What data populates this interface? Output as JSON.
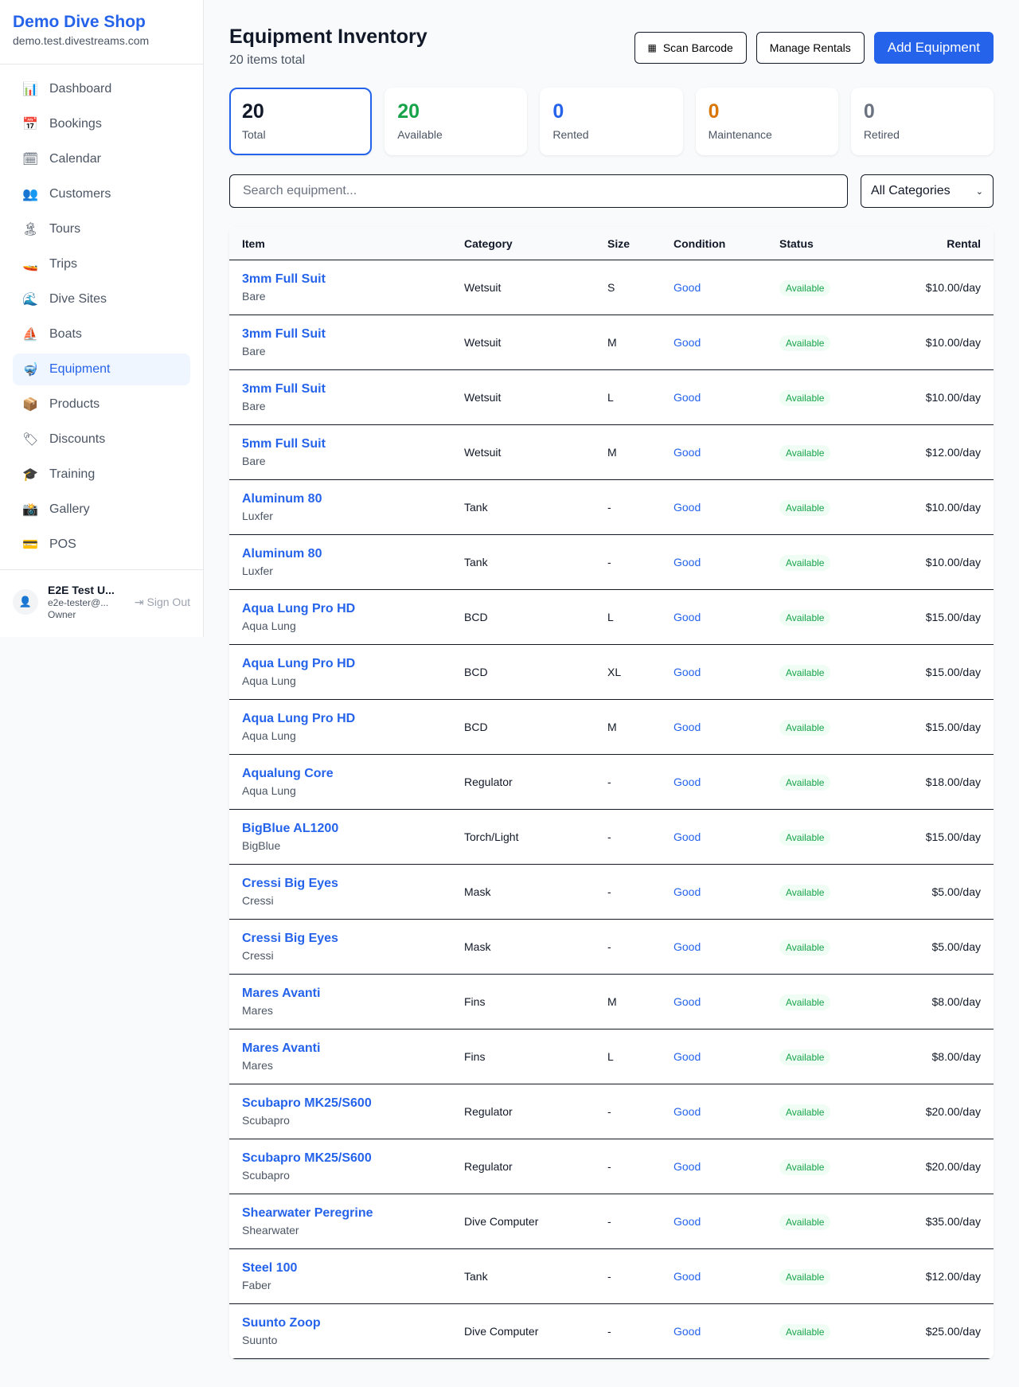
{
  "sidebar": {
    "shop_name": "Demo Dive Shop",
    "domain": "demo.test.divestreams.com",
    "items": [
      {
        "label": "Dashboard",
        "icon": "📊"
      },
      {
        "label": "Bookings",
        "icon": "📅"
      },
      {
        "label": "Calendar",
        "icon": "🗓"
      },
      {
        "label": "Customers",
        "icon": "👥"
      },
      {
        "label": "Tours",
        "icon": "🏝"
      },
      {
        "label": "Trips",
        "icon": "🚤"
      },
      {
        "label": "Dive Sites",
        "icon": "🌊"
      },
      {
        "label": "Boats",
        "icon": "⛵"
      },
      {
        "label": "Equipment",
        "icon": "🤿",
        "active": true
      },
      {
        "label": "Products",
        "icon": "📦"
      },
      {
        "label": "Discounts",
        "icon": "🏷"
      },
      {
        "label": "Training",
        "icon": "🎓"
      },
      {
        "label": "Gallery",
        "icon": "📸"
      },
      {
        "label": "POS",
        "icon": "💳"
      }
    ],
    "user": {
      "name": "E2E Test U...",
      "email": "e2e-tester@...",
      "role": "Owner",
      "sign_out": "Sign Out"
    }
  },
  "header": {
    "title": "Equipment Inventory",
    "subtitle": "20 items total",
    "scan_barcode": "Scan Barcode",
    "manage_rentals": "Manage Rentals",
    "add_equipment": "Add Equipment"
  },
  "stats": [
    {
      "value": "20",
      "label": "Total",
      "color": "#111827"
    },
    {
      "value": "20",
      "label": "Available",
      "color": "#16a34a"
    },
    {
      "value": "0",
      "label": "Rented",
      "color": "#2563eb"
    },
    {
      "value": "0",
      "label": "Maintenance",
      "color": "#d97706"
    },
    {
      "value": "0",
      "label": "Retired",
      "color": "#6b7280"
    }
  ],
  "filters": {
    "search_placeholder": "Search equipment...",
    "category": "All Categories"
  },
  "table": {
    "headers": [
      "Item",
      "Category",
      "Size",
      "Condition",
      "Status",
      "Rental"
    ],
    "rows": [
      [
        "3mm Full Suit",
        "Bare",
        "Wetsuit",
        "S",
        "Good",
        "Available",
        "$10.00/day"
      ],
      [
        "3mm Full Suit",
        "Bare",
        "Wetsuit",
        "M",
        "Good",
        "Available",
        "$10.00/day"
      ],
      [
        "3mm Full Suit",
        "Bare",
        "Wetsuit",
        "L",
        "Good",
        "Available",
        "$10.00/day"
      ],
      [
        "5mm Full Suit",
        "Bare",
        "Wetsuit",
        "M",
        "Good",
        "Available",
        "$12.00/day"
      ],
      [
        "Aluminum 80",
        "Luxfer",
        "Tank",
        "-",
        "Good",
        "Available",
        "$10.00/day"
      ],
      [
        "Aluminum 80",
        "Luxfer",
        "Tank",
        "-",
        "Good",
        "Available",
        "$10.00/day"
      ],
      [
        "Aqua Lung Pro HD",
        "Aqua Lung",
        "BCD",
        "L",
        "Good",
        "Available",
        "$15.00/day"
      ],
      [
        "Aqua Lung Pro HD",
        "Aqua Lung",
        "BCD",
        "XL",
        "Good",
        "Available",
        "$15.00/day"
      ],
      [
        "Aqua Lung Pro HD",
        "Aqua Lung",
        "BCD",
        "M",
        "Good",
        "Available",
        "$15.00/day"
      ],
      [
        "Aqualung Core",
        "Aqua Lung",
        "Regulator",
        "-",
        "Good",
        "Available",
        "$18.00/day"
      ],
      [
        "BigBlue AL1200",
        "BigBlue",
        "Torch/Light",
        "-",
        "Good",
        "Available",
        "$15.00/day"
      ],
      [
        "Cressi Big Eyes",
        "Cressi",
        "Mask",
        "-",
        "Good",
        "Available",
        "$5.00/day"
      ],
      [
        "Cressi Big Eyes",
        "Cressi",
        "Mask",
        "-",
        "Good",
        "Available",
        "$5.00/day"
      ],
      [
        "Mares Avanti",
        "Mares",
        "Fins",
        "M",
        "Good",
        "Available",
        "$8.00/day"
      ],
      [
        "Mares Avanti",
        "Mares",
        "Fins",
        "L",
        "Good",
        "Available",
        "$8.00/day"
      ],
      [
        "Scubapro MK25/S600",
        "Scubapro",
        "Regulator",
        "-",
        "Good",
        "Available",
        "$20.00/day"
      ],
      [
        "Scubapro MK25/S600",
        "Scubapro",
        "Regulator",
        "-",
        "Good",
        "Available",
        "$20.00/day"
      ],
      [
        "Shearwater Peregrine",
        "Shearwater",
        "Dive Computer",
        "-",
        "Good",
        "Available",
        "$35.00/day"
      ],
      [
        "Steel 100",
        "Faber",
        "Tank",
        "-",
        "Good",
        "Available",
        "$12.00/day"
      ],
      [
        "Suunto Zoop",
        "Suunto",
        "Dive Computer",
        "-",
        "Good",
        "Available",
        "$25.00/day"
      ]
    ]
  }
}
